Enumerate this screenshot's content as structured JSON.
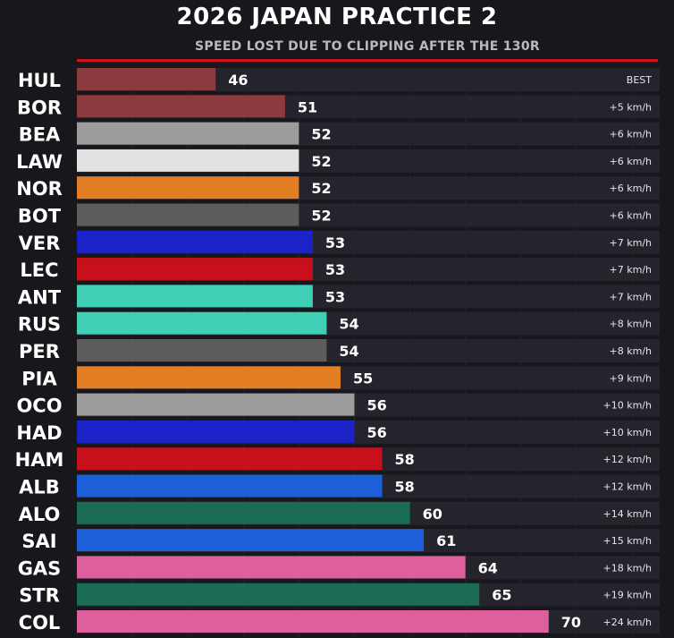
{
  "title": "2026 JAPAN PRACTICE 2",
  "subtitle": "SPEED LOST DUE TO CLIPPING AFTER THE 130R",
  "chart_data": {
    "type": "bar",
    "orientation": "horizontal",
    "title": "2026 JAPAN PRACTICE 2",
    "subtitle": "SPEED LOST DUE TO CLIPPING AFTER THE 130R",
    "xlim": [
      36,
      78
    ],
    "grid": true,
    "rows": [
      {
        "label": "HUL",
        "value": 46,
        "delta": "BEST",
        "color": "#8b3a3e"
      },
      {
        "label": "BOR",
        "value": 51,
        "delta": "+5 km/h",
        "color": "#8b3a3e"
      },
      {
        "label": "BEA",
        "value": 52,
        "delta": "+6 km/h",
        "color": "#9c9c9c"
      },
      {
        "label": "LAW",
        "value": 52,
        "delta": "+6 km/h",
        "color": "#e1e1e1"
      },
      {
        "label": "NOR",
        "value": 52,
        "delta": "+6 km/h",
        "color": "#e37e24"
      },
      {
        "label": "BOT",
        "value": 52,
        "delta": "+6 km/h",
        "color": "#5c5c5c"
      },
      {
        "label": "VER",
        "value": 53,
        "delta": "+7 km/h",
        "color": "#1b22c8"
      },
      {
        "label": "LEC",
        "value": 53,
        "delta": "+7 km/h",
        "color": "#c8101c"
      },
      {
        "label": "ANT",
        "value": 53,
        "delta": "+7 km/h",
        "color": "#3fcfb4"
      },
      {
        "label": "RUS",
        "value": 54,
        "delta": "+8 km/h",
        "color": "#3fcfb4"
      },
      {
        "label": "PER",
        "value": 54,
        "delta": "+8 km/h",
        "color": "#5c5c5c"
      },
      {
        "label": "PIA",
        "value": 55,
        "delta": "+9 km/h",
        "color": "#e37e24"
      },
      {
        "label": "OCO",
        "value": 56,
        "delta": "+10 km/h",
        "color": "#9c9c9c"
      },
      {
        "label": "HAD",
        "value": 56,
        "delta": "+10 km/h",
        "color": "#1b22c8"
      },
      {
        "label": "HAM",
        "value": 58,
        "delta": "+12 km/h",
        "color": "#c8101c"
      },
      {
        "label": "ALB",
        "value": 58,
        "delta": "+12 km/h",
        "color": "#1d5fd8"
      },
      {
        "label": "ALO",
        "value": 60,
        "delta": "+14 km/h",
        "color": "#1c6b55"
      },
      {
        "label": "SAI",
        "value": 61,
        "delta": "+15 km/h",
        "color": "#1d5fd8"
      },
      {
        "label": "GAS",
        "value": 64,
        "delta": "+18 km/h",
        "color": "#de5f9e"
      },
      {
        "label": "STR",
        "value": 65,
        "delta": "+19 km/h",
        "color": "#1c6b55"
      },
      {
        "label": "COL",
        "value": 70,
        "delta": "+24 km/h",
        "color": "#de5f9e"
      }
    ]
  }
}
